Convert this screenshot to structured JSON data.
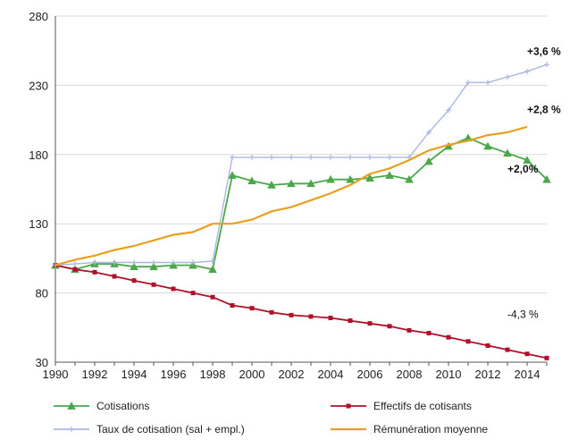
{
  "chart_data": {
    "type": "line",
    "title": "",
    "xlabel": "",
    "ylabel": "",
    "xlim": [
      1990,
      2015
    ],
    "ylim": [
      30,
      280
    ],
    "x_ticks": [
      "1990",
      "1992",
      "1994",
      "1996",
      "1998",
      "2000",
      "2002",
      "2004",
      "2006",
      "2008",
      "2010",
      "2012",
      "2014"
    ],
    "y_ticks": [
      "30",
      "80",
      "130",
      "180",
      "230",
      "280"
    ],
    "grid": "horizontal",
    "legend_position": "bottom",
    "series": [
      {
        "name": "Cotisations",
        "color": "#4aa84a",
        "marker": "triangle",
        "x": [
          1990,
          1991,
          1992,
          1993,
          1994,
          1995,
          1996,
          1997,
          1998,
          1999,
          2000,
          2001,
          2002,
          2003,
          2004,
          2005,
          2006,
          2007,
          2008,
          2009,
          2010,
          2011,
          2012,
          2013,
          2014,
          2015
        ],
        "values": [
          100,
          97,
          101,
          101,
          99,
          99,
          100,
          100,
          97,
          165,
          161,
          158,
          159,
          159,
          162,
          162,
          163,
          165,
          162,
          175,
          186,
          192,
          186,
          181,
          176,
          162
        ]
      },
      {
        "name": "Effectifs de cotisants",
        "color": "#b0102a",
        "marker": "square",
        "x": [
          1990,
          1991,
          1992,
          1993,
          1994,
          1995,
          1996,
          1997,
          1998,
          1999,
          2000,
          2001,
          2002,
          2003,
          2004,
          2005,
          2006,
          2007,
          2008,
          2009,
          2010,
          2011,
          2012,
          2013,
          2014,
          2015
        ],
        "values": [
          100,
          97,
          95,
          92,
          89,
          86,
          83,
          80,
          77,
          71,
          69,
          66,
          64,
          63,
          62,
          60,
          58,
          56,
          53,
          51,
          48,
          45,
          42,
          39,
          36,
          33
        ]
      },
      {
        "name": "Taux de cotisation (sal + empl.)",
        "color": "#aab8e0",
        "marker": "cross",
        "x": [
          1990,
          1991,
          1992,
          1993,
          1994,
          1995,
          1996,
          1997,
          1998,
          1999,
          2000,
          2001,
          2002,
          2003,
          2004,
          2005,
          2006,
          2007,
          2008,
          2009,
          2010,
          2011,
          2012,
          2013,
          2014,
          2015
        ],
        "values": [
          100,
          101,
          102,
          102,
          102,
          102,
          102,
          102,
          103,
          178,
          178,
          178,
          178,
          178,
          178,
          178,
          178,
          178,
          178,
          196,
          212,
          232,
          232,
          236,
          240,
          245
        ]
      },
      {
        "name": "Rémunération moyenne",
        "color": "#e8a020",
        "marker": "none",
        "x": [
          1990,
          1991,
          1992,
          1993,
          1994,
          1995,
          1996,
          1997,
          1998,
          1999,
          2000,
          2001,
          2002,
          2003,
          2004,
          2005,
          2006,
          2007,
          2008,
          2009,
          2010,
          2011,
          2012,
          2013,
          2014
        ],
        "values": [
          100,
          104,
          107,
          111,
          114,
          118,
          122,
          124,
          130,
          130,
          133,
          139,
          142,
          147,
          152,
          158,
          166,
          170,
          176,
          183,
          187,
          190,
          194,
          196,
          200
        ]
      }
    ],
    "annotations": [
      {
        "text": "+3,6 %",
        "x": 2014,
        "y": 252,
        "bold": true
      },
      {
        "text": "+2,8 %",
        "x": 2014,
        "y": 210,
        "bold": true
      },
      {
        "text": "+2,0%",
        "x": 2013,
        "y": 167,
        "bold": true
      },
      {
        "text": "-4,3 %",
        "x": 2013,
        "y": 62,
        "bold": false
      }
    ]
  }
}
